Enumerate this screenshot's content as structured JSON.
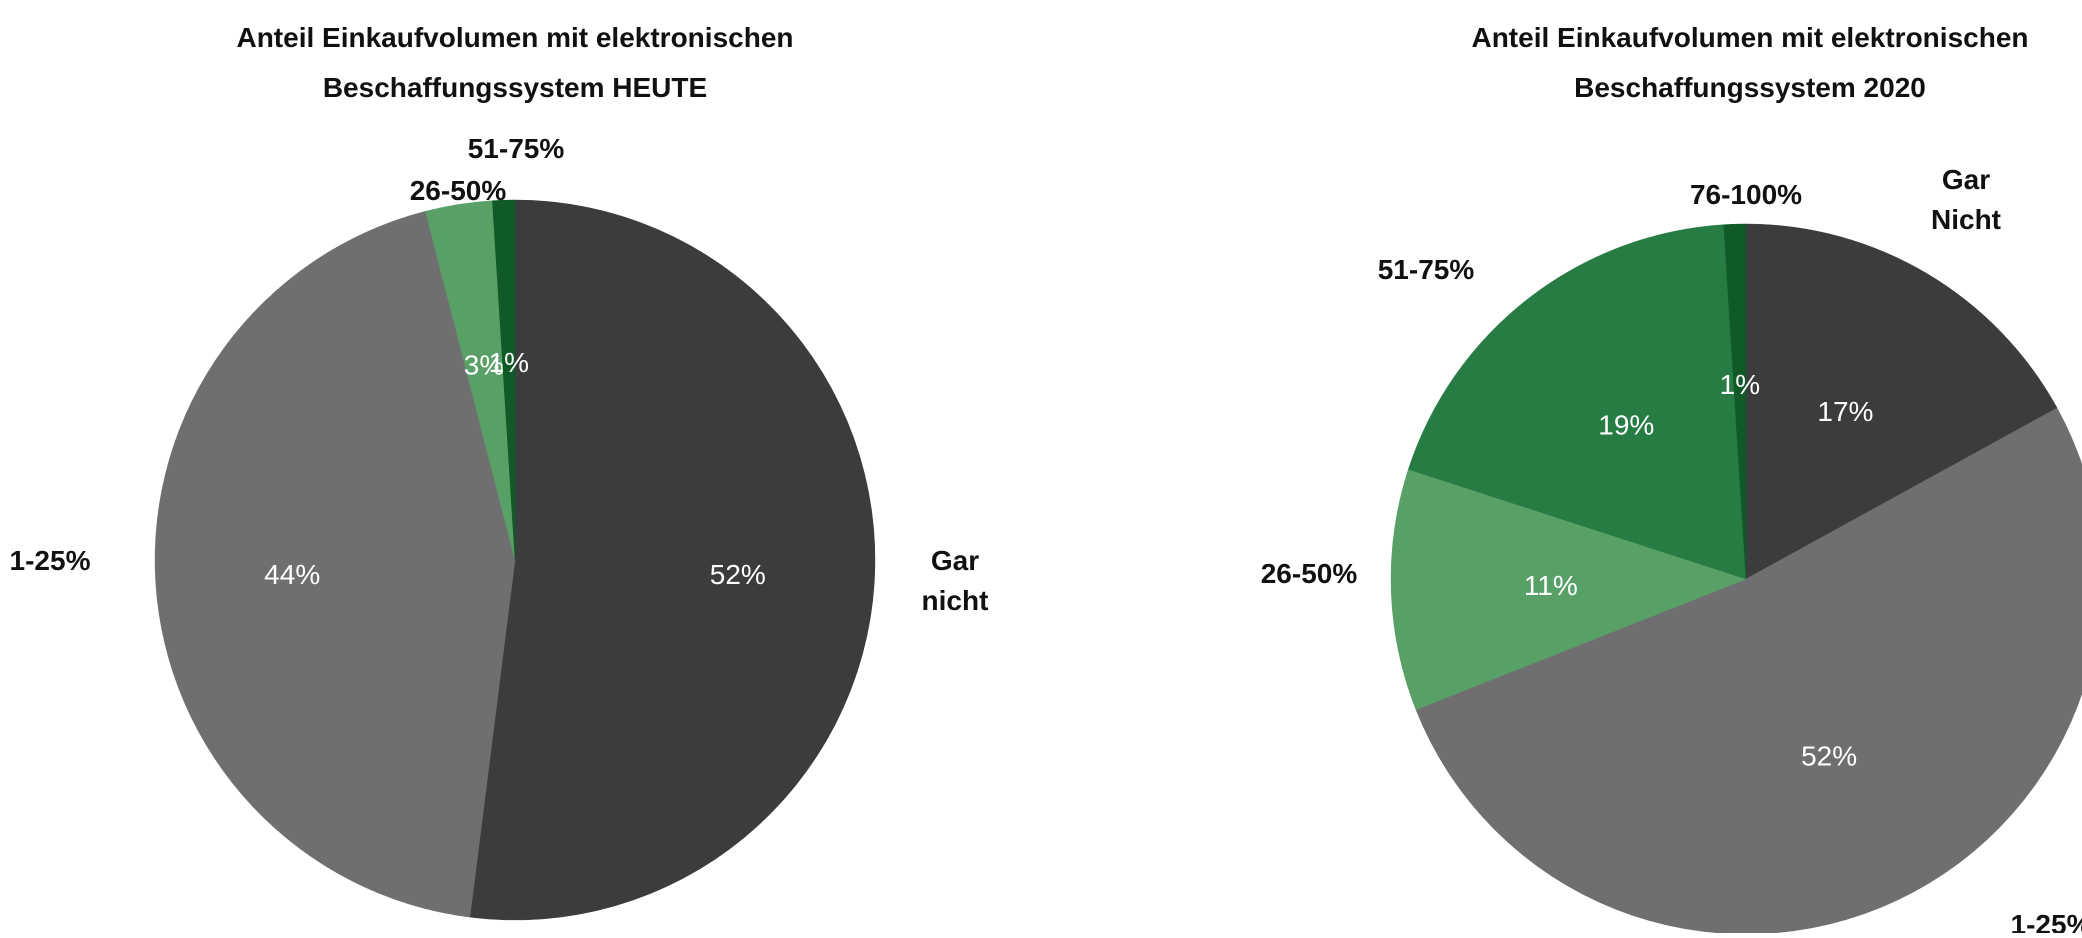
{
  "chart_data": [
    {
      "type": "pie",
      "title_lines": [
        "Anteil Einkaufvolumen mit elektronischen",
        "Beschaffungssystem HEUTE"
      ],
      "slices": [
        {
          "category": "Gar nicht",
          "category_lines": [
            "Gar",
            "nicht"
          ],
          "value": 52,
          "value_label": "52%",
          "color": "#3c3c3e"
        },
        {
          "category": "1-25%",
          "category_lines": [
            "1-25%"
          ],
          "value": 44,
          "value_label": "44%",
          "color": "#6f6f72"
        },
        {
          "category": "26-50%",
          "category_lines": [
            "26-50%"
          ],
          "value": 3,
          "value_label": "3%",
          "color": "#58a066"
        },
        {
          "category": "51-75%",
          "category_lines": [
            "51-75%"
          ],
          "value": 1,
          "value_label": "1%",
          "color": "#0f5a26"
        }
      ]
    },
    {
      "type": "pie",
      "title_lines": [
        "Anteil Einkaufvolumen mit elektronischen",
        "Beschaffungssystem 2020"
      ],
      "slices": [
        {
          "category": "Gar Nicht",
          "category_lines": [
            "Gar",
            "Nicht"
          ],
          "value": 17,
          "value_label": "17%",
          "color": "#3c3c3e"
        },
        {
          "category": "1-25%",
          "category_lines": [
            "1-25%"
          ],
          "value": 52,
          "value_label": "52%",
          "color": "#6f6f72"
        },
        {
          "category": "26-50%",
          "category_lines": [
            "26-50%"
          ],
          "value": 11,
          "value_label": "11%",
          "color": "#58a066"
        },
        {
          "category": "51-75%",
          "category_lines": [
            "51-75%"
          ],
          "value": 19,
          "value_label": "19%",
          "color": "#267c43"
        },
        {
          "category": "76-100%",
          "category_lines": [
            "76-100%"
          ],
          "value": 1,
          "value_label": "1%",
          "color": "#0f5a26"
        }
      ]
    }
  ]
}
